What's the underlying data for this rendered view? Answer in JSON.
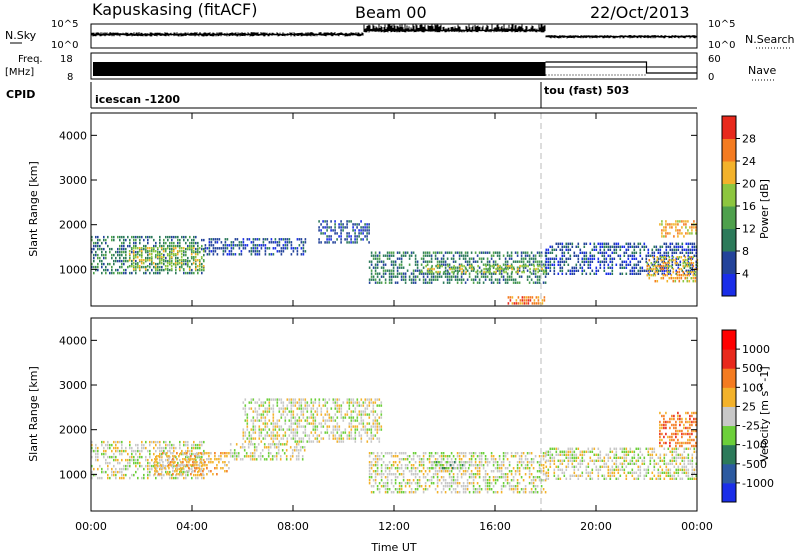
{
  "header": {
    "station": "Kapuskasing (fitACF)",
    "beam": "Beam 00",
    "date": "22/Oct/2013"
  },
  "strip_labels": {
    "nsky": "N.Sky",
    "freq_line1": "Freq.",
    "freq_line2": "[MHz]",
    "cpid": "CPID",
    "nsearch": "N.Search",
    "nave": "Nave"
  },
  "strip_ticks": {
    "noise_left_top": "10^5",
    "noise_left_bottom": "10^0",
    "noise_right_top": "10^5",
    "noise_right_bottom": "10^0",
    "freq_left_top": "18",
    "freq_left_bottom": "8",
    "nave_right_top": "60",
    "nave_right_bottom": "0"
  },
  "cpid_segments": [
    {
      "name": "icescan -1200",
      "start_hour": 0
    },
    {
      "name": "tou (fast) 503",
      "start_hour": 18
    }
  ],
  "time_axis": {
    "label": "Time UT",
    "ticks": [
      "00:00",
      "04:00",
      "08:00",
      "12:00",
      "16:00",
      "20:00",
      "00:00"
    ]
  },
  "chart_data": [
    {
      "type": "heatmap",
      "panel": "power",
      "ylabel": "Slant Range [km]",
      "yticks": [
        "1000",
        "2000",
        "3000",
        "4000"
      ],
      "ylim": [
        180,
        4500
      ],
      "xlim_hours": [
        0,
        24
      ],
      "colorbar": {
        "label": "Power [dB]",
        "ticks": [
          "4",
          "8",
          "12",
          "16",
          "20",
          "24",
          "28"
        ],
        "colors": [
          "#1a2ee8",
          "#23439a",
          "#2c7a5a",
          "#4ea04c",
          "#8dc63f",
          "#f3b22b",
          "#f47b20",
          "#e8291c"
        ]
      },
      "regions": [
        {
          "t0": 0.0,
          "t1": 4.5,
          "r0": 900,
          "r1": 1750,
          "level": 2
        },
        {
          "t0": 1.5,
          "t1": 4.5,
          "r0": 1000,
          "r1": 1500,
          "level": 4
        },
        {
          "t0": 4.5,
          "t1": 8.5,
          "r0": 1300,
          "r1": 1700,
          "level": 1
        },
        {
          "t0": 9.0,
          "t1": 11.0,
          "r0": 1600,
          "r1": 2100,
          "level": 1
        },
        {
          "t0": 11.0,
          "t1": 18.0,
          "r0": 700,
          "r1": 1400,
          "level": 2
        },
        {
          "t0": 13.0,
          "t1": 18.0,
          "r0": 900,
          "r1": 1100,
          "level": 4
        },
        {
          "t0": 16.5,
          "t1": 18.0,
          "r0": 250,
          "r1": 400,
          "level": 6
        },
        {
          "t0": 18.0,
          "t1": 24.0,
          "r0": 900,
          "r1": 1600,
          "level": 1
        },
        {
          "t0": 22.0,
          "t1": 24.0,
          "r0": 700,
          "r1": 1300,
          "level": 5
        },
        {
          "t0": 22.5,
          "t1": 24.0,
          "r0": 1700,
          "r1": 2100,
          "level": 5
        }
      ]
    },
    {
      "type": "heatmap",
      "panel": "velocity",
      "ylabel": "Slant Range [km]",
      "yticks": [
        "1000",
        "2000",
        "3000",
        "4000"
      ],
      "ylim": [
        180,
        4500
      ],
      "xlim_hours": [
        0,
        24
      ],
      "colorbar": {
        "label": "Velocity [m s^-1]",
        "ticks": [
          "1000",
          "500",
          "100",
          "25",
          "-25",
          "-100",
          "-500",
          "-1000"
        ],
        "colors": [
          "#1a2ee8",
          "#2c5aa0",
          "#2c7a5a",
          "#6ccf3a",
          "#c8c8c8",
          "#f3b22b",
          "#f47b20",
          "#e8291c",
          "#ff0000"
        ]
      },
      "regions": [
        {
          "t0": 0.0,
          "t1": 4.5,
          "r0": 900,
          "r1": 1750,
          "level": 4
        },
        {
          "t0": 2.5,
          "t1": 5.5,
          "r0": 1000,
          "r1": 1500,
          "level": 5
        },
        {
          "t0": 5.5,
          "t1": 8.5,
          "r0": 1300,
          "r1": 1700,
          "level": 4
        },
        {
          "t0": 6.0,
          "t1": 11.5,
          "r0": 1700,
          "r1": 2700,
          "level": 4
        },
        {
          "t0": 11.0,
          "t1": 18.0,
          "r0": 600,
          "r1": 1500,
          "level": 4
        },
        {
          "t0": 13.5,
          "t1": 15.0,
          "r0": 1100,
          "r1": 1300,
          "level": 3
        },
        {
          "t0": 18.0,
          "t1": 24.0,
          "r0": 900,
          "r1": 1600,
          "level": 4
        },
        {
          "t0": 22.5,
          "t1": 24.0,
          "r0": 1600,
          "r1": 2400,
          "level": 6
        }
      ]
    }
  ]
}
